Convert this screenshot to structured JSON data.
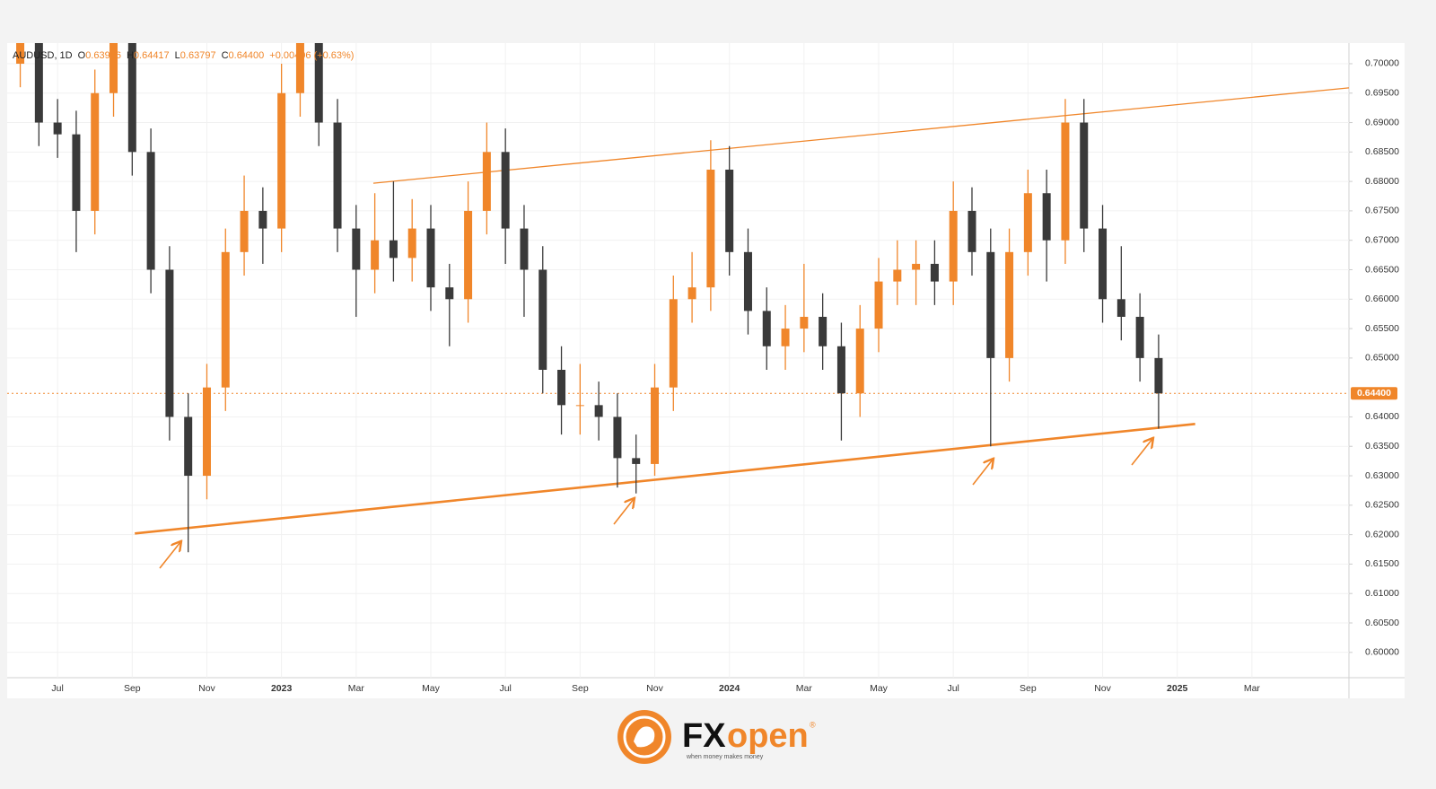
{
  "chart_data": {
    "type": "candlestick",
    "legend": [
      {
        "label": "AUDUSD, 1D"
      },
      {
        "label": "O",
        "value": "0.63956"
      },
      {
        "label": "H",
        "value": "0.64417"
      },
      {
        "label": "L",
        "value": "0.63797"
      },
      {
        "label": "C",
        "value": "0.64400"
      },
      {
        "value": "+0.00406 (+0.63%)"
      }
    ],
    "up_color": "#f0862a",
    "down_color": "#3a3a3a",
    "line_color": "#f0862a",
    "x": [
      -1,
      -0.5,
      0,
      0.5,
      1,
      1.5,
      2,
      2.5,
      3,
      3.5,
      4,
      4.5,
      5,
      5.5,
      6,
      6.5,
      7,
      7.5,
      8,
      8.5,
      9,
      9.5,
      10,
      10.5,
      11,
      11.5,
      12,
      12.5,
      13,
      13.5,
      14,
      14.5,
      15,
      15.5,
      16,
      16.5,
      17,
      17.5,
      18,
      18.5,
      19,
      19.5,
      20,
      20.5,
      21,
      21.5,
      22,
      22.5,
      23,
      23.5,
      24,
      24.5,
      25,
      25.5,
      26,
      26.5,
      27,
      27.5,
      28,
      28.5,
      29,
      29.5
    ],
    "open": [
      0.7,
      0.705,
      0.69,
      0.688,
      0.675,
      0.695,
      0.705,
      0.685,
      0.665,
      0.64,
      0.63,
      0.645,
      0.668,
      0.675,
      0.672,
      0.695,
      0.705,
      0.69,
      0.672,
      0.665,
      0.67,
      0.667,
      0.672,
      0.662,
      0.66,
      0.675,
      0.685,
      0.672,
      0.665,
      0.648,
      0.642,
      0.642,
      0.64,
      0.633,
      0.632,
      0.645,
      0.66,
      0.662,
      0.682,
      0.668,
      0.658,
      0.652,
      0.655,
      0.657,
      0.652,
      0.644,
      0.655,
      0.663,
      0.665,
      0.666,
      0.663,
      0.675,
      0.668,
      0.65,
      0.668,
      0.678,
      0.67,
      0.69,
      0.672,
      0.66,
      0.657,
      0.65
    ],
    "high": [
      0.709,
      0.709,
      0.694,
      0.692,
      0.699,
      0.712,
      0.709,
      0.689,
      0.669,
      0.644,
      0.649,
      0.672,
      0.681,
      0.679,
      0.7,
      0.712,
      0.709,
      0.694,
      0.676,
      0.678,
      0.68,
      0.677,
      0.676,
      0.666,
      0.68,
      0.69,
      0.689,
      0.676,
      0.669,
      0.652,
      0.649,
      0.646,
      0.644,
      0.637,
      0.649,
      0.664,
      0.668,
      0.687,
      0.686,
      0.672,
      0.662,
      0.659,
      0.666,
      0.661,
      0.656,
      0.659,
      0.667,
      0.67,
      0.67,
      0.67,
      0.68,
      0.679,
      0.672,
      0.672,
      0.682,
      0.682,
      0.694,
      0.694,
      0.676,
      0.669,
      0.661,
      0.654
    ],
    "low": [
      0.696,
      0.686,
      0.684,
      0.668,
      0.671,
      0.691,
      0.681,
      0.661,
      0.636,
      0.617,
      0.626,
      0.641,
      0.664,
      0.666,
      0.668,
      0.691,
      0.686,
      0.668,
      0.657,
      0.661,
      0.663,
      0.663,
      0.658,
      0.652,
      0.656,
      0.671,
      0.666,
      0.657,
      0.644,
      0.637,
      0.637,
      0.636,
      0.628,
      0.627,
      0.63,
      0.641,
      0.656,
      0.658,
      0.664,
      0.654,
      0.648,
      0.648,
      0.651,
      0.648,
      0.636,
      0.64,
      0.651,
      0.659,
      0.659,
      0.659,
      0.659,
      0.664,
      0.635,
      0.646,
      0.664,
      0.663,
      0.666,
      0.668,
      0.656,
      0.653,
      0.646,
      0.638
    ],
    "close": [
      0.705,
      0.69,
      0.688,
      0.675,
      0.695,
      0.705,
      0.685,
      0.665,
      0.64,
      0.63,
      0.645,
      0.668,
      0.675,
      0.672,
      0.695,
      0.705,
      0.69,
      0.672,
      0.665,
      0.67,
      0.667,
      0.672,
      0.662,
      0.66,
      0.675,
      0.685,
      0.672,
      0.665,
      0.648,
      0.642,
      0.642,
      0.64,
      0.633,
      0.632,
      0.645,
      0.66,
      0.662,
      0.682,
      0.668,
      0.658,
      0.652,
      0.655,
      0.657,
      0.652,
      0.644,
      0.655,
      0.663,
      0.665,
      0.666,
      0.663,
      0.675,
      0.668,
      0.65,
      0.668,
      0.678,
      0.67,
      0.69,
      0.672,
      0.66,
      0.657,
      0.65,
      0.644
    ],
    "last_price": {
      "value": 0.644,
      "label": "0.64400"
    },
    "trendlines": [
      {
        "x": [
          8.46,
          34.6
        ],
        "y": [
          0.6797,
          0.6959
        ]
      },
      {
        "x": [
          2.07,
          30.48
        ],
        "y": [
          0.6202,
          0.6388
        ]
      }
    ],
    "xlim": [
      -1.35,
      34.6
    ],
    "xticks": [
      {
        "value": 0,
        "label": "Jul"
      },
      {
        "value": 2,
        "label": "Sep"
      },
      {
        "value": 4,
        "label": "Nov"
      },
      {
        "value": 6,
        "label": "2023"
      },
      {
        "value": 8,
        "label": "Mar"
      },
      {
        "value": 10,
        "label": "May"
      },
      {
        "value": 12,
        "label": "Jul"
      },
      {
        "value": 14,
        "label": "Sep"
      },
      {
        "value": 16,
        "label": "Nov"
      },
      {
        "value": 18,
        "label": "2024"
      },
      {
        "value": 20,
        "label": "Mar"
      },
      {
        "value": 22,
        "label": "May"
      },
      {
        "value": 24,
        "label": "Jul"
      },
      {
        "value": 26,
        "label": "Sep"
      },
      {
        "value": 28,
        "label": "Nov"
      },
      {
        "value": 30,
        "label": "2025"
      },
      {
        "value": 32,
        "label": "Mar"
      }
    ],
    "ylim": [
      0.5957,
      0.7035
    ],
    "yticks": [
      {
        "value": 0.6,
        "label": "0.60000"
      },
      {
        "value": 0.605,
        "label": "0.60500"
      },
      {
        "value": 0.61,
        "label": "0.61000"
      },
      {
        "value": 0.615,
        "label": "0.61500"
      },
      {
        "value": 0.62,
        "label": "0.62000"
      },
      {
        "value": 0.625,
        "label": "0.62500"
      },
      {
        "value": 0.63,
        "label": "0.63000"
      },
      {
        "value": 0.635,
        "label": "0.63500"
      },
      {
        "value": 0.64,
        "label": "0.64000"
      },
      {
        "value": 0.65,
        "label": "0.65000"
      },
      {
        "value": 0.655,
        "label": "0.65500"
      },
      {
        "value": 0.66,
        "label": "0.66000"
      },
      {
        "value": 0.665,
        "label": "0.66500"
      },
      {
        "value": 0.67,
        "label": "0.67000"
      },
      {
        "value": 0.675,
        "label": "0.67500"
      },
      {
        "value": 0.68,
        "label": "0.68000"
      },
      {
        "value": 0.685,
        "label": "0.68500"
      },
      {
        "value": 0.69,
        "label": "0.69000"
      },
      {
        "value": 0.695,
        "label": "0.69500"
      },
      {
        "value": 0.7,
        "label": "0.70000"
      }
    ],
    "grid": true
  },
  "footer": {
    "brand_left": "FX",
    "brand_right": "open",
    "mark": "®",
    "tagline": "when money makes money"
  }
}
